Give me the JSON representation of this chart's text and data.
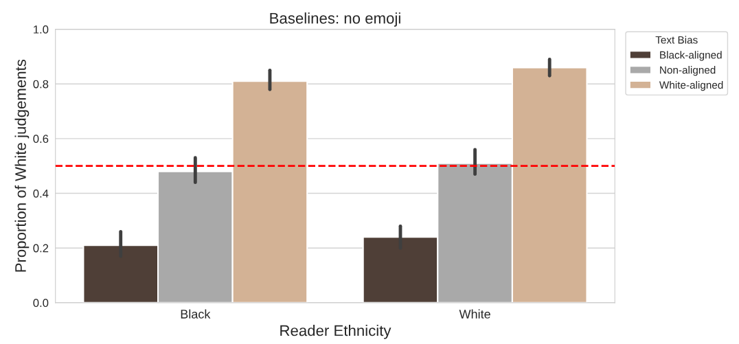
{
  "chart_data": {
    "type": "bar",
    "title": "Baselines: no emoji",
    "xlabel": "Reader Ethnicity",
    "ylabel": "Proportion of White judgements",
    "legend_title": "Text Bias",
    "categories": [
      "Black",
      "White"
    ],
    "series": [
      {
        "name": "Black-aligned",
        "color": "#4f3f37",
        "values": [
          0.21,
          0.24
        ],
        "errors": [
          [
            0.17,
            0.26
          ],
          [
            0.2,
            0.28
          ]
        ]
      },
      {
        "name": "Non-aligned",
        "color": "#a9a9a9",
        "values": [
          0.48,
          0.51
        ],
        "errors": [
          [
            0.44,
            0.53
          ],
          [
            0.47,
            0.56
          ]
        ]
      },
      {
        "name": "White-aligned",
        "color": "#d3b295",
        "values": [
          0.81,
          0.86
        ],
        "errors": [
          [
            0.78,
            0.85
          ],
          [
            0.83,
            0.89
          ]
        ]
      }
    ],
    "ylim": [
      0,
      1
    ],
    "yticks": [
      {
        "value": 0,
        "label": "0.0"
      },
      0.2,
      0.4,
      0.6,
      0.8,
      {
        "value": 1,
        "label": "1.0"
      }
    ],
    "ref_lines": [
      {
        "axis": "y",
        "value": 0.5,
        "color": "#ff0000",
        "line_style": "dashed"
      }
    ],
    "grid": "y",
    "legend": "top right"
  }
}
